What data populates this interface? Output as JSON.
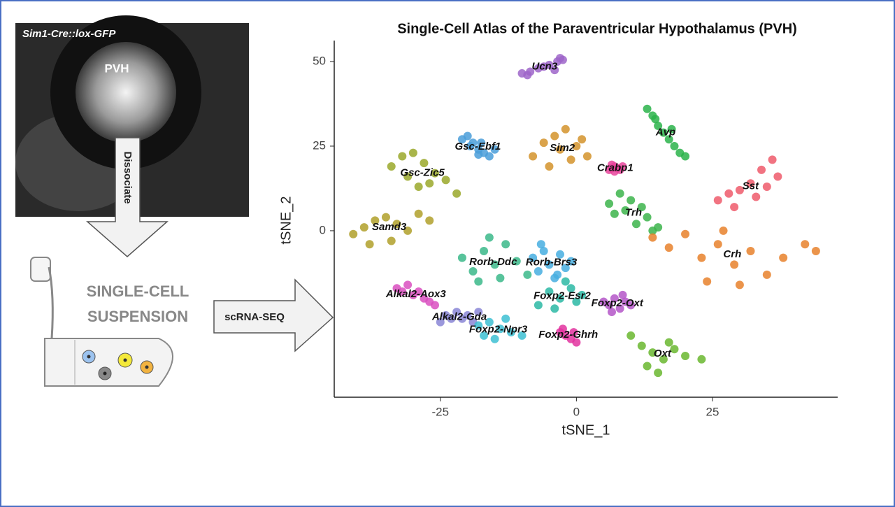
{
  "panel": {
    "image_caption": "Sim1-Cre::lox-GFP",
    "image_label": "PVH",
    "step1": "Dissociate",
    "suspension_line1": "SINGLE-CELL",
    "suspension_line2": "SUSPENSION",
    "step2": "scRNA-SEQ"
  },
  "chart_data": {
    "type": "scatter",
    "title": "Single-Cell Atlas of the Paraventricular Hypothalamus (PVH)",
    "x_label": "tSNE_1",
    "y_label": "tSNE_2",
    "xlim": [
      -44.5,
      48
    ],
    "ylim": [
      -49.2,
      56.2
    ],
    "xticks": [
      -25,
      0,
      25
    ],
    "yticks": [
      0,
      25,
      50
    ],
    "series": [
      {
        "name": "Ucn3",
        "color": "#9e65c9",
        "x": [
          -10,
          -8.5,
          -7,
          -5,
          -3.5,
          -2.5,
          -4,
          -6,
          -9,
          -3
        ],
        "y": [
          46.5,
          47,
          48,
          49,
          50,
          50.5,
          47.5,
          48.5,
          46,
          51
        ]
      },
      {
        "name": "Avp",
        "color": "#2ab34a",
        "x": [
          13,
          14,
          15,
          16,
          17,
          18,
          19,
          20,
          14.5,
          17.5
        ],
        "y": [
          36,
          34,
          31,
          29,
          27,
          25,
          23,
          22,
          33,
          30
        ]
      },
      {
        "name": "Sim2",
        "color": "#d4932b",
        "x": [
          -8,
          -6,
          -4,
          -2,
          0,
          2,
          -5,
          -1,
          -3,
          1
        ],
        "y": [
          22,
          26,
          28,
          30,
          25,
          22,
          19,
          21,
          24,
          27
        ]
      },
      {
        "name": "Gsc-Ebf1",
        "color": "#4a9ed9",
        "x": [
          -21,
          -20,
          -19,
          -18,
          -17,
          -16,
          -15,
          -19.5,
          -17.5,
          -18
        ],
        "y": [
          27,
          28,
          26,
          24,
          23,
          22,
          24,
          25,
          26,
          22.5
        ]
      },
      {
        "name": "Gsc-Zic5",
        "color": "#9aa82a",
        "x": [
          -34,
          -32,
          -30,
          -28,
          -26,
          -24,
          -31,
          -29,
          -27,
          -22
        ],
        "y": [
          19,
          22,
          23,
          20,
          17,
          15,
          16,
          13,
          14,
          11
        ]
      },
      {
        "name": "Samd3",
        "color": "#b0a02a",
        "x": [
          -41,
          -39,
          -37,
          -35,
          -33,
          -31,
          -29,
          -38,
          -34,
          -27
        ],
        "y": [
          -1,
          1,
          3,
          4,
          2,
          0,
          5,
          -4,
          -3,
          3
        ]
      },
      {
        "name": "Crabp1",
        "color": "#e8439b",
        "x": [
          6,
          6.5,
          7,
          7.5,
          8,
          8.5,
          7,
          6.5
        ],
        "y": [
          18,
          18.5,
          19,
          18.5,
          18,
          19,
          17.5,
          19.5
        ]
      },
      {
        "name": "Sst",
        "color": "#ee5a6b",
        "x": [
          26,
          28,
          30,
          32,
          34,
          36,
          37,
          33,
          29,
          35
        ],
        "y": [
          9,
          11,
          12,
          14,
          18,
          21,
          16,
          10,
          7,
          13
        ]
      },
      {
        "name": "Trh",
        "color": "#3cb44b",
        "x": [
          6,
          7,
          8,
          9,
          10,
          11,
          12,
          13,
          14,
          15
        ],
        "y": [
          8,
          5,
          11,
          6,
          9,
          2,
          7,
          4,
          0,
          1
        ]
      },
      {
        "name": "Crh",
        "color": "#e8812b",
        "x": [
          14,
          17,
          20,
          23,
          26,
          29,
          32,
          35,
          38,
          42,
          44,
          24,
          30,
          27
        ],
        "y": [
          -2,
          -5,
          -1,
          -8,
          -4,
          -10,
          -6,
          -13,
          -8,
          -4,
          -6,
          -15,
          -16,
          0
        ]
      },
      {
        "name": "Rorb-Ddc",
        "color": "#3bb88a",
        "x": [
          -21,
          -19,
          -17,
          -15,
          -13,
          -11,
          -9,
          -18,
          -14,
          -16
        ],
        "y": [
          -8,
          -12,
          -6,
          -10,
          -4,
          -9,
          -13,
          -15,
          -14,
          -2
        ]
      },
      {
        "name": "Rorb-Brs3",
        "color": "#46aee0",
        "x": [
          -8,
          -7,
          -6,
          -5,
          -4,
          -3,
          -2,
          -1,
          -6.5,
          -3.5
        ],
        "y": [
          -8,
          -12,
          -6,
          -10,
          -14,
          -7,
          -11,
          -9,
          -4,
          -13
        ]
      },
      {
        "name": "Alkal2-Aox3",
        "color": "#d94fbf",
        "x": [
          -33,
          -32,
          -31,
          -30,
          -29,
          -28,
          -27,
          -26
        ],
        "y": [
          -17,
          -18,
          -16,
          -19,
          -18,
          -20,
          -21,
          -22
        ]
      },
      {
        "name": "Alkal2-Gda",
        "color": "#8a86d6",
        "x": [
          -25,
          -24,
          -23,
          -22,
          -21,
          -20,
          -19,
          -18
        ],
        "y": [
          -27,
          -25,
          -26,
          -24,
          -26,
          -25,
          -27,
          -24
        ]
      },
      {
        "name": "Foxp2-Npr3",
        "color": "#3dbfd2",
        "x": [
          -18,
          -16,
          -14,
          -12,
          -10,
          -15,
          -13,
          -17
        ],
        "y": [
          -28,
          -27,
          -29,
          -30,
          -31,
          -32,
          -26,
          -31
        ]
      },
      {
        "name": "Foxp2-Esr2",
        "color": "#2cb8a4",
        "x": [
          -7,
          -5,
          -3,
          -1,
          1,
          -4,
          -2,
          0
        ],
        "y": [
          -22,
          -18,
          -20,
          -17,
          -19,
          -23,
          -15,
          -21
        ]
      },
      {
        "name": "Foxp2-Oxt",
        "color": "#b456c8",
        "x": [
          5,
          6,
          7,
          8,
          9,
          10,
          6.5,
          8.5
        ],
        "y": [
          -21,
          -22,
          -20,
          -23,
          -21,
          -22,
          -24,
          -19
        ]
      },
      {
        "name": "Foxp2-Ghrh",
        "color": "#e2339f",
        "x": [
          -3,
          -2,
          -1,
          0,
          -2.5,
          -0.5
        ],
        "y": [
          -30,
          -31,
          -32,
          -33,
          -29,
          -30
        ]
      },
      {
        "name": "Oxt",
        "color": "#6ab72f",
        "x": [
          10,
          12,
          14,
          16,
          18,
          20,
          23,
          13,
          15,
          17
        ],
        "y": [
          -31,
          -34,
          -36,
          -38,
          -35,
          -37,
          -38,
          -40,
          -42,
          -33
        ]
      }
    ]
  }
}
